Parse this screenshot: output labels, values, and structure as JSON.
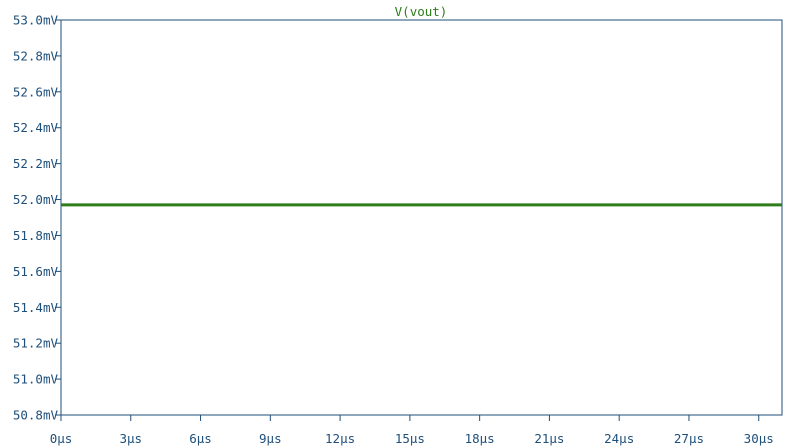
{
  "chart_data": {
    "type": "line",
    "title": "V(vout)",
    "xlabel": "",
    "ylabel": "",
    "xlim": [
      0,
      31
    ],
    "ylim": [
      50.8,
      53.0
    ],
    "x_ticks": [
      0,
      3,
      6,
      9,
      12,
      15,
      18,
      21,
      24,
      27,
      30
    ],
    "x_tick_labels": [
      "0µs",
      "3µs",
      "6µs",
      "9µs",
      "12µs",
      "15µs",
      "18µs",
      "21µs",
      "24µs",
      "27µs",
      "30µs"
    ],
    "y_ticks": [
      53.0,
      52.8,
      52.6,
      52.4,
      52.2,
      52.0,
      51.8,
      51.6,
      51.4,
      51.2,
      51.0,
      50.8
    ],
    "y_tick_labels": [
      "53.0mV",
      "52.8mV",
      "52.6mV",
      "52.4mV",
      "52.2mV",
      "52.0mV",
      "51.8mV",
      "51.6mV",
      "51.4mV",
      "51.2mV",
      "51.0mV",
      "50.8mV"
    ],
    "grid": false,
    "series": [
      {
        "name": "V(vout)",
        "x": [
          0,
          31
        ],
        "values": [
          51.97,
          51.97
        ]
      }
    ]
  },
  "colors": {
    "axis": "#1e4f7a",
    "trace": "#2e7d1a",
    "background": "#ffffff"
  }
}
